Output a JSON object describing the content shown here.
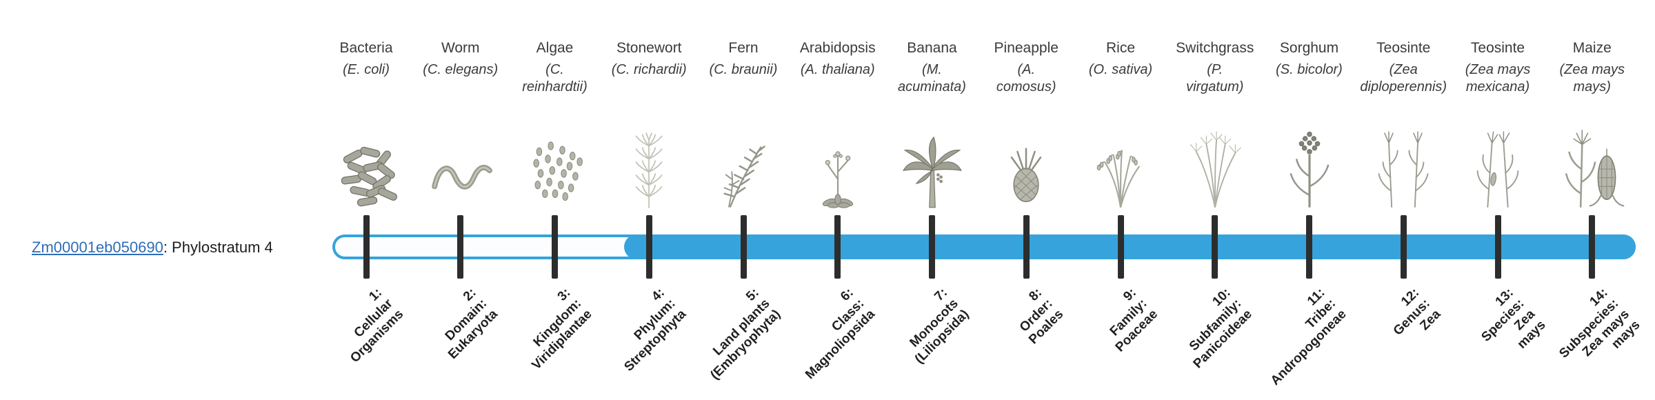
{
  "gene": {
    "link_label": "Zm00001eb050690",
    "suffix": ": Phylostratum 4",
    "phylostratum": 4
  },
  "colors": {
    "bar_fill": "#36a3dc",
    "bar_outline": "#36a3dc",
    "tick": "#2d2d2d",
    "link": "#2e6db6",
    "text": "#3b3b3b",
    "label_text": "#1f1f1f"
  },
  "timeline": {
    "total_strata": 14,
    "highlighted_from_stratum": 4,
    "unfilled_strata": "1-3",
    "filled_strata": "4-14"
  },
  "organisms": [
    {
      "common": "Bacteria",
      "scientific_lines": [
        "(E. coli)"
      ],
      "icon": "bacteria",
      "stratum_lines": [
        "1:",
        "Cellular",
        "Organisms"
      ]
    },
    {
      "common": "Worm",
      "scientific_lines": [
        "(C. elegans)"
      ],
      "icon": "worm",
      "stratum_lines": [
        "2:",
        "Domain:",
        "Eukaryota"
      ]
    },
    {
      "common": "Algae",
      "scientific_lines": [
        "(C.",
        "reinhardtii)"
      ],
      "icon": "algae",
      "stratum_lines": [
        "3:",
        "Kingdom:",
        "Viridiplantae"
      ]
    },
    {
      "common": "Stonewort",
      "scientific_lines": [
        "(C. richardii)"
      ],
      "icon": "stonewort",
      "stratum_lines": [
        "4:",
        "Phylum:",
        "Streptophyta"
      ]
    },
    {
      "common": "Fern",
      "scientific_lines": [
        "(C. braunii)"
      ],
      "icon": "fern",
      "stratum_lines": [
        "5:",
        "Land plants",
        "(Embryophyta)"
      ]
    },
    {
      "common": "Arabidopsis",
      "scientific_lines": [
        "(A. thaliana)"
      ],
      "icon": "arabidopsis",
      "stratum_lines": [
        "6:",
        "Class:",
        "Magnoliopsida"
      ]
    },
    {
      "common": "Banana",
      "scientific_lines": [
        "(M.",
        "acuminata)"
      ],
      "icon": "banana",
      "stratum_lines": [
        "7:",
        "Monocots",
        "(Liliopsida)"
      ]
    },
    {
      "common": "Pineapple",
      "scientific_lines": [
        "(A.",
        "comosus)"
      ],
      "icon": "pineapple",
      "stratum_lines": [
        "8:",
        "Order:",
        "Poales"
      ]
    },
    {
      "common": "Rice",
      "scientific_lines": [
        "(O. sativa)"
      ],
      "icon": "rice",
      "stratum_lines": [
        "9:",
        "Family:",
        "Poaceae"
      ]
    },
    {
      "common": "Switchgrass",
      "scientific_lines": [
        "(P.",
        "virgatum)"
      ],
      "icon": "switchgrass",
      "stratum_lines": [
        "10:",
        "Subfamily:",
        "Panicoideae"
      ]
    },
    {
      "common": "Sorghum",
      "scientific_lines": [
        "(S. bicolor)"
      ],
      "icon": "sorghum",
      "stratum_lines": [
        "11:",
        "Tribe:",
        "Andropogoneae"
      ]
    },
    {
      "common": "Teosinte",
      "scientific_lines": [
        "(Zea",
        "diploperennis)"
      ],
      "icon": "teosinte-diplo",
      "stratum_lines": [
        "12:",
        "Genus:",
        "Zea"
      ]
    },
    {
      "common": "Teosinte",
      "scientific_lines": [
        "(Zea mays",
        "mexicana)"
      ],
      "icon": "teosinte-mex",
      "stratum_lines": [
        "13:",
        "Species:",
        "Zea",
        "mays"
      ]
    },
    {
      "common": "Maize",
      "scientific_lines": [
        "(Zea mays",
        "mays)"
      ],
      "icon": "maize",
      "stratum_lines": [
        "14:",
        "Subspecies:",
        "Zea mays",
        "mays"
      ]
    }
  ]
}
